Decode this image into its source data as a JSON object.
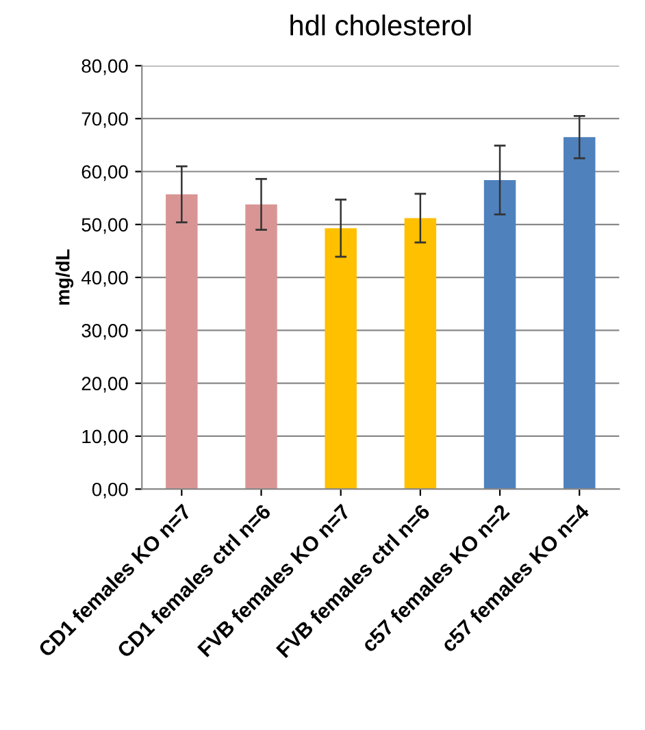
{
  "chart_data": {
    "type": "bar",
    "title": "hdl cholesterol",
    "ylabel": "mg/dL",
    "categories": [
      "CD1 females KO n=7",
      "CD1 females ctrl n=6",
      "FVB females KO n=7",
      "FVB females ctrl n=6",
      "c57 females KO n=2",
      "c57 females KO n=4"
    ],
    "values": [
      55.7,
      53.8,
      49.3,
      51.2,
      58.4,
      66.5
    ],
    "errors": [
      5.3,
      4.8,
      5.4,
      4.6,
      6.5,
      4.0
    ],
    "colors": [
      "#d99594",
      "#d99594",
      "#ffc000",
      "#ffc000",
      "#4f81bd",
      "#4f81bd"
    ],
    "ylim": [
      0,
      80
    ],
    "yticks": [
      {
        "value": 0,
        "label": "0,00"
      },
      {
        "value": 10,
        "label": "10,00"
      },
      {
        "value": 20,
        "label": "20,00"
      },
      {
        "value": 30,
        "label": "30,00"
      },
      {
        "value": 40,
        "label": "40,00"
      },
      {
        "value": 50,
        "label": "50,00"
      },
      {
        "value": 60,
        "label": "60,00"
      },
      {
        "value": 70,
        "label": "70,00"
      },
      {
        "value": 80,
        "label": "80,00"
      }
    ],
    "grid": "y",
    "legend": false
  }
}
